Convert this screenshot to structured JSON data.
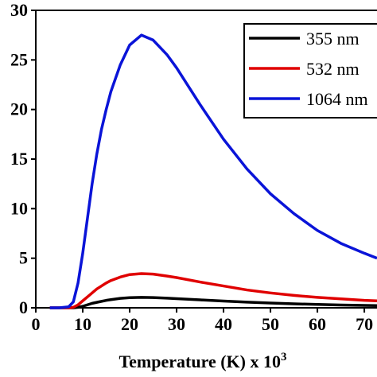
{
  "chart_data": {
    "type": "line",
    "xlabel": "Temperature (K) x 10",
    "xlabel_superscript": "3",
    "x": [
      3,
      5,
      7,
      8,
      9,
      10,
      11,
      12,
      13,
      14,
      15,
      16,
      18,
      20,
      22.5,
      25,
      28,
      30,
      35,
      40,
      45,
      50,
      55,
      60,
      65,
      70,
      72.7
    ],
    "series": [
      {
        "name": "355 nm",
        "color": "#000000",
        "values": [
          0,
          0,
          0,
          0,
          0.05,
          0.15,
          0.3,
          0.45,
          0.55,
          0.65,
          0.75,
          0.82,
          0.95,
          1.02,
          1.05,
          1.03,
          0.97,
          0.92,
          0.8,
          0.68,
          0.57,
          0.48,
          0.4,
          0.34,
          0.28,
          0.24,
          0.22
        ]
      },
      {
        "name": "532 nm",
        "color": "#e00000",
        "values": [
          0,
          0,
          0,
          0.05,
          0.3,
          0.7,
          1.1,
          1.5,
          1.9,
          2.2,
          2.5,
          2.75,
          3.1,
          3.35,
          3.45,
          3.4,
          3.2,
          3.05,
          2.6,
          2.2,
          1.8,
          1.5,
          1.25,
          1.05,
          0.9,
          0.75,
          0.7
        ]
      },
      {
        "name": "1064 nm",
        "color": "#0a14d8",
        "values": [
          0,
          0,
          0.1,
          0.6,
          2.5,
          5.5,
          9,
          12.5,
          15.5,
          18,
          20,
          21.8,
          24.5,
          26.5,
          27.5,
          27,
          25.5,
          24.2,
          20.5,
          17,
          14,
          11.5,
          9.5,
          7.8,
          6.5,
          5.5,
          5
        ]
      }
    ],
    "xlim": [
      0,
      72.7
    ],
    "xticks": [
      0,
      10,
      20,
      30,
      40,
      50,
      60,
      70
    ],
    "ylim": [
      0,
      30
    ],
    "yticks": [
      0,
      5,
      10,
      15,
      20,
      25,
      30
    ],
    "legend": "top-right"
  }
}
